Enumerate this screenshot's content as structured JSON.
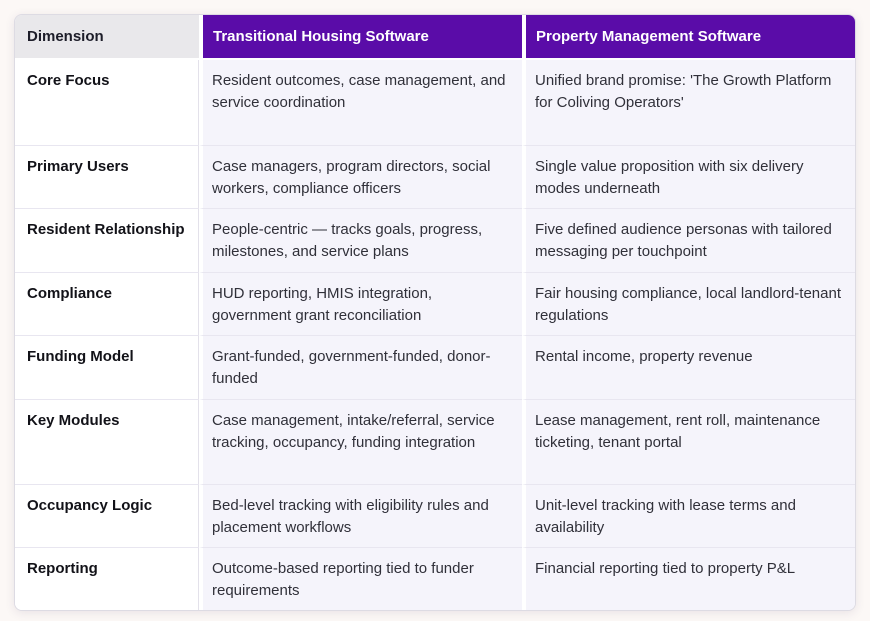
{
  "colors": {
    "header_purple": "#5A0CA8",
    "header_gray_bg": "#E9E8EB",
    "cell_lavender_bg": "#F5F4FB",
    "row_label_bg": "#FFFFFF",
    "page_bg": "#FCF8F6",
    "divider": "#E8E6F0"
  },
  "table": {
    "columns": [
      "Dimension",
      "Transitional Housing Software",
      "Property Management Software"
    ],
    "rows": [
      {
        "dimension": "Core Focus",
        "transitional": "Resident outcomes, case management, and service coordination",
        "property": "Unified brand promise: 'The Growth Platform for Coliving Operators'"
      },
      {
        "dimension": "Primary Users",
        "transitional": "Case managers, program directors, social workers, compliance officers",
        "property": "Single value proposition with six delivery modes underneath"
      },
      {
        "dimension": "Resident Relationship",
        "transitional": "People-centric — tracks goals, progress, milestones, and service plans",
        "property": "Five defined audience personas with tailored messaging per touchpoint"
      },
      {
        "dimension": "Compliance",
        "transitional": "HUD reporting, HMIS integration, government grant reconciliation",
        "property": "Fair housing compliance, local landlord-tenant regulations"
      },
      {
        "dimension": "Funding Model",
        "transitional": "Grant-funded, government-funded, donor-funded",
        "property": "Rental income, property revenue"
      },
      {
        "dimension": "Key Modules",
        "transitional": "Case management, intake/referral, service tracking, occupancy, funding integration",
        "property": "Lease management, rent roll, maintenance ticketing, tenant portal"
      },
      {
        "dimension": "Occupancy Logic",
        "transitional": "Bed-level tracking with eligibility rules and placement workflows",
        "property": "Unit-level tracking with lease terms and availability"
      },
      {
        "dimension": "Reporting",
        "transitional": "Outcome-based reporting tied to funder requirements",
        "property": "Financial reporting tied to property P&L"
      }
    ]
  }
}
